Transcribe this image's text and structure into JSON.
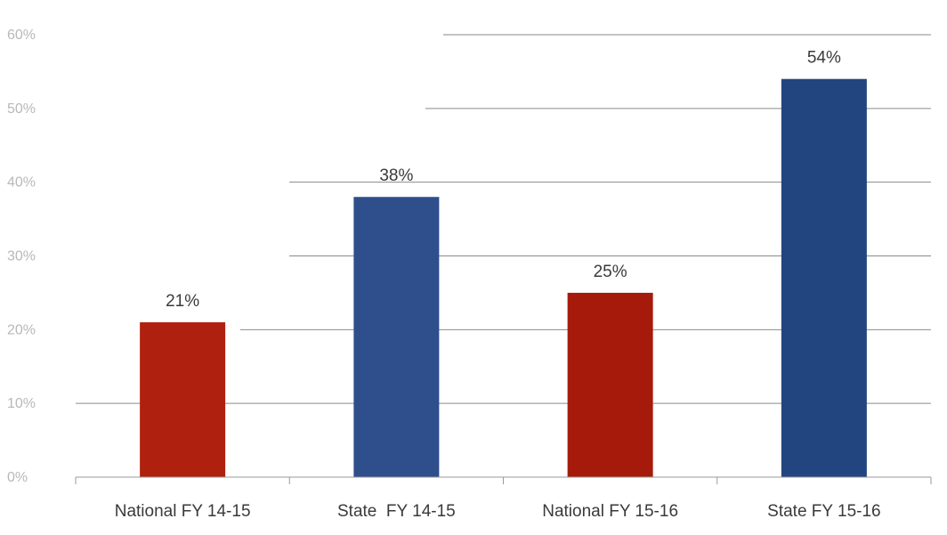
{
  "chart_data": {
    "type": "bar",
    "categories": [
      "National FY 14-15",
      "State  FY 14-15",
      "National FY 15-16",
      "State FY 15-16"
    ],
    "values": [
      21,
      38,
      25,
      54
    ],
    "data_labels": [
      "21%",
      "38%",
      "25%",
      "54%"
    ],
    "colors": [
      "#b0200e",
      "#2e4f8c",
      "#a61a0c",
      "#23457f"
    ],
    "ylim": [
      0,
      60
    ],
    "yticks": [
      0,
      10,
      20,
      30,
      40,
      50,
      60
    ],
    "ytick_labels": [
      "0%",
      "10%",
      "20%",
      "30%",
      "40%",
      "50%",
      "60%"
    ],
    "grid": true,
    "title": "",
    "xlabel": "",
    "ylabel": ""
  }
}
